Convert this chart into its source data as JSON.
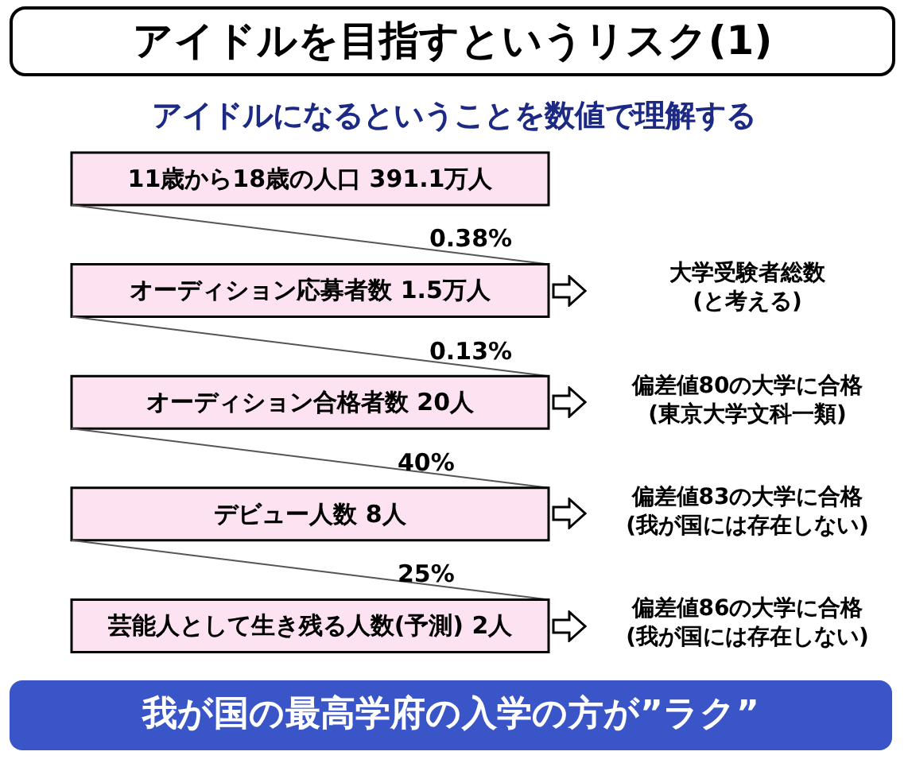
{
  "chart_data": {
    "type": "other",
    "title": "アイドルを目指すというリスク(1)",
    "subtitle": "アイドルになるということを数値で理解する",
    "categories": [
      "11歳から18歳の人口",
      "オーディション応募者数",
      "オーディション合格者数",
      "デビュー人数",
      "芸能人として生き残る人数(予測)"
    ],
    "values": [
      391.1,
      1.5,
      20,
      8,
      2
    ],
    "value_labels": [
      "391.1万人",
      "1.5万人",
      "20人",
      "8人",
      "2人"
    ],
    "color": "#fde3f1",
    "annotations": [
      {
        "text": "0.38%",
        "y": "オーディション応募者数"
      },
      {
        "text": "大学受験者総数\n(と考える)",
        "y": "オーディション応募者数"
      },
      {
        "text": "0.13%",
        "y": "オーディション合格者数"
      },
      {
        "text": "偏差値80の大学に合格\n(東京大学文科一類)",
        "y": "オーディション合格者数"
      },
      {
        "text": "40%",
        "y": "デビュー人数"
      },
      {
        "text": "偏差値83の大学に合格\n(我が国には存在しない)",
        "y": "デビュー人数"
      },
      {
        "text": "25%",
        "y": "芸能人として生き残る人数(予測)"
      },
      {
        "text": "偏差値86の大学に合格\n(我が国には存在しない)",
        "y": "芸能人として生き残る人数(予測)"
      },
      "我が国の最高学府の入学の方が”ラク”"
    ]
  }
}
